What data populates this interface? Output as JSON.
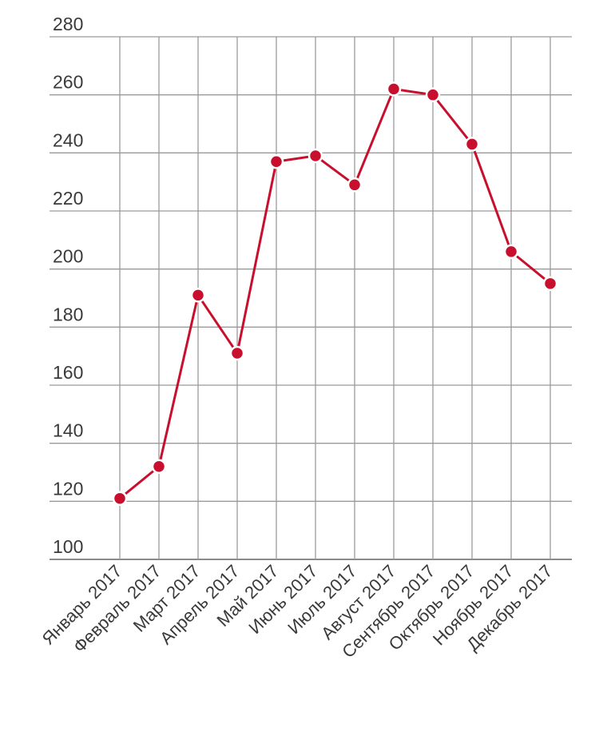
{
  "chart_data": {
    "type": "line",
    "title": "",
    "xlabel": "",
    "ylabel": "",
    "categories": [
      "Январь 2017",
      "Февраль 2017",
      "Март 2017",
      "Апрель 2017",
      "Май 2017",
      "Июнь 2017",
      "Июль 2017",
      "Август 2017",
      "Сентябрь 2017",
      "Октябрь 2017",
      "Ноябрь 2017",
      "Декабрь 2017"
    ],
    "series": [
      {
        "values": [
          121,
          132,
          191,
          171,
          237,
          239,
          229,
          262,
          260,
          243,
          206,
          195
        ],
        "color": "#c8102e"
      }
    ],
    "ylim": [
      100,
      280
    ],
    "yticks": [
      "100",
      "120",
      "140",
      "160",
      "180",
      "200",
      "220",
      "240",
      "260",
      "280"
    ],
    "grid": true,
    "legend": "none"
  }
}
